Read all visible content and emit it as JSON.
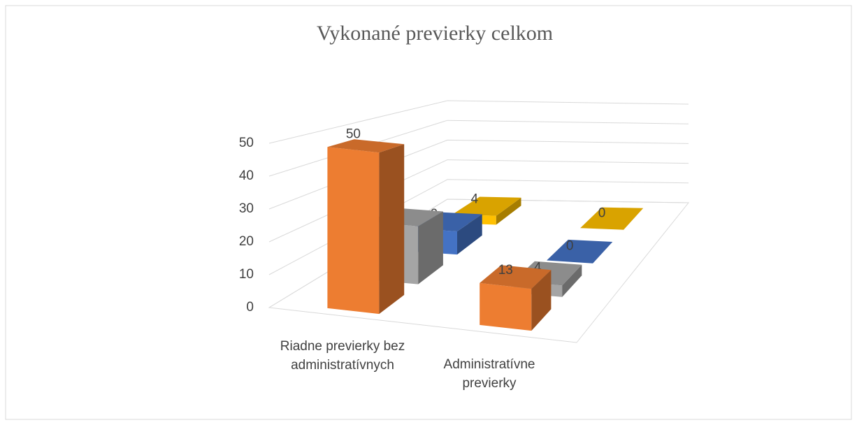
{
  "chart_data": {
    "type": "bar3d",
    "title": "Vykonané previerky  celkom",
    "categories": [
      "Riadne previerky bez administratívnych",
      "Administratívne previerky"
    ],
    "series": [
      {
        "color": "#ED7D31",
        "values": [
          50,
          13
        ]
      },
      {
        "color": "#A5A5A5",
        "values": [
          20,
          4
        ]
      },
      {
        "color": "#4472C4",
        "values": [
          9,
          0
        ]
      },
      {
        "color": "#FFC000",
        "values": [
          4,
          0
        ]
      }
    ],
    "ylim": [
      0,
      50
    ],
    "yticks": [
      0,
      10,
      20,
      30,
      40,
      50
    ],
    "grid": true
  }
}
